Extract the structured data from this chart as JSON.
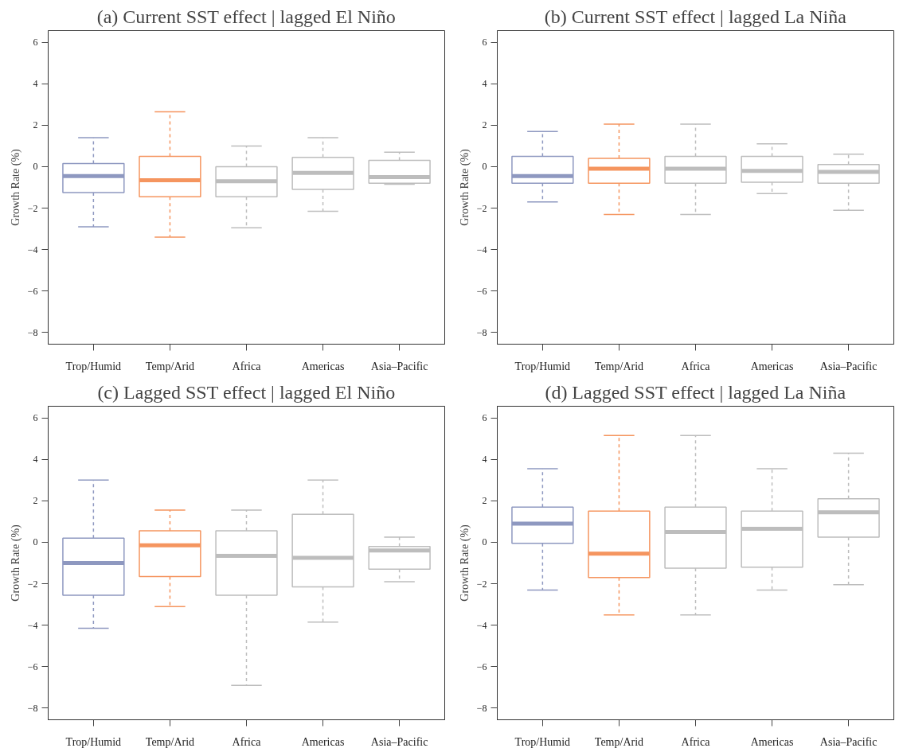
{
  "chart_data": [
    {
      "type": "box",
      "title": "(a) Current SST effect | lagged El Niño",
      "ylabel": "Growth Rate (%)",
      "categories": [
        "Trop/Humid",
        "Temp/Arid",
        "Africa",
        "Americas",
        "Asia–Pacific"
      ],
      "colors": [
        "#8e98c0",
        "#f5955f",
        "#bdbdbd",
        "#bdbdbd",
        "#bdbdbd"
      ],
      "ylim": [
        -8.56,
        6.56
      ],
      "yticks": [
        -8,
        -6,
        -4,
        -2,
        0,
        2,
        4,
        6
      ],
      "boxes": [
        {
          "low": -2.9,
          "q1": -1.25,
          "median": -0.45,
          "q3": 0.15,
          "high": 1.4
        },
        {
          "low": -3.4,
          "q1": -1.45,
          "median": -0.65,
          "q3": 0.5,
          "high": 2.65
        },
        {
          "low": -2.95,
          "q1": -1.45,
          "median": -0.7,
          "q3": 0.0,
          "high": 1.0
        },
        {
          "low": -2.15,
          "q1": -1.1,
          "median": -0.3,
          "q3": 0.45,
          "high": 1.4
        },
        {
          "low": -0.85,
          "q1": -0.8,
          "median": -0.5,
          "q3": 0.3,
          "high": 0.7
        }
      ]
    },
    {
      "type": "box",
      "title": "(b) Current SST effect | lagged La Niña",
      "ylabel": "Growth Rate (%)",
      "categories": [
        "Trop/Humid",
        "Temp/Arid",
        "Africa",
        "Americas",
        "Asia–Pacific"
      ],
      "colors": [
        "#8e98c0",
        "#f5955f",
        "#bdbdbd",
        "#bdbdbd",
        "#bdbdbd"
      ],
      "ylim": [
        -8.56,
        6.56
      ],
      "yticks": [
        -8,
        -6,
        -4,
        -2,
        0,
        2,
        4,
        6
      ],
      "boxes": [
        {
          "low": -1.7,
          "q1": -0.8,
          "median": -0.45,
          "q3": 0.5,
          "high": 1.7
        },
        {
          "low": -2.3,
          "q1": -0.8,
          "median": -0.1,
          "q3": 0.4,
          "high": 2.05
        },
        {
          "low": -2.3,
          "q1": -0.8,
          "median": -0.1,
          "q3": 0.5,
          "high": 2.05
        },
        {
          "low": -1.3,
          "q1": -0.75,
          "median": -0.2,
          "q3": 0.5,
          "high": 1.1
        },
        {
          "low": -2.1,
          "q1": -0.8,
          "median": -0.25,
          "q3": 0.1,
          "high": 0.6
        }
      ]
    },
    {
      "type": "box",
      "title": "(c) Lagged SST effect | lagged El Niño",
      "ylabel": "Growth Rate (%)",
      "categories": [
        "Trop/Humid",
        "Temp/Arid",
        "Africa",
        "Americas",
        "Asia–Pacific"
      ],
      "colors": [
        "#8e98c0",
        "#f5955f",
        "#bdbdbd",
        "#bdbdbd",
        "#bdbdbd"
      ],
      "ylim": [
        -8.56,
        6.56
      ],
      "yticks": [
        -8,
        -6,
        -4,
        -2,
        0,
        2,
        4,
        6
      ],
      "boxes": [
        {
          "low": -4.15,
          "q1": -2.55,
          "median": -1.0,
          "q3": 0.2,
          "high": 3.0
        },
        {
          "low": -3.1,
          "q1": -1.65,
          "median": -0.15,
          "q3": 0.55,
          "high": 1.55
        },
        {
          "low": -6.9,
          "q1": -2.55,
          "median": -0.65,
          "q3": 0.55,
          "high": 1.55
        },
        {
          "low": -3.85,
          "q1": -2.15,
          "median": -0.75,
          "q3": 1.35,
          "high": 3.0
        },
        {
          "low": -1.9,
          "q1": -1.3,
          "median": -0.4,
          "q3": -0.2,
          "high": 0.25
        }
      ]
    },
    {
      "type": "box",
      "title": "(d) Lagged SST effect | lagged La Niña",
      "ylabel": "Growth Rate (%)",
      "categories": [
        "Trop/Humid",
        "Temp/Arid",
        "Africa",
        "Americas",
        "Asia–Pacific"
      ],
      "colors": [
        "#8e98c0",
        "#f5955f",
        "#bdbdbd",
        "#bdbdbd",
        "#bdbdbd"
      ],
      "ylim": [
        -8.56,
        6.56
      ],
      "yticks": [
        -8,
        -6,
        -4,
        -2,
        0,
        2,
        4,
        6
      ],
      "boxes": [
        {
          "low": -2.3,
          "q1": -0.05,
          "median": 0.9,
          "q3": 1.7,
          "high": 3.55
        },
        {
          "low": -3.5,
          "q1": -1.7,
          "median": -0.55,
          "q3": 1.5,
          "high": 5.15
        },
        {
          "low": -3.5,
          "q1": -1.25,
          "median": 0.5,
          "q3": 1.7,
          "high": 5.15
        },
        {
          "low": -2.3,
          "q1": -1.2,
          "median": 0.65,
          "q3": 1.5,
          "high": 3.55
        },
        {
          "low": -2.05,
          "q1": 0.25,
          "median": 1.45,
          "q3": 2.1,
          "high": 4.3
        }
      ]
    }
  ]
}
